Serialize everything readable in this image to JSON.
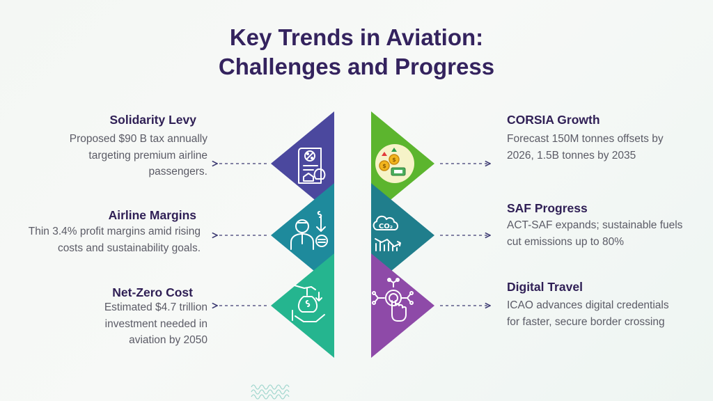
{
  "title": {
    "line1": "Key Trends in Aviation:",
    "line2": "Challenges and Progress"
  },
  "items": [
    {
      "side": "left",
      "heading": "Solidarity Levy",
      "description": "Proposed $90 B tax annually targeting premium airline passengers.",
      "icon": "tax-receipt-icon",
      "color": "#4b489e"
    },
    {
      "side": "left",
      "heading": "Airline Margins",
      "description": "Thin 3.4% profit margins amid rising costs and sustainability goals.",
      "icon": "stressed-businessman-icon",
      "color": "#1e8a9c"
    },
    {
      "side": "left",
      "heading": "Net-Zero Cost",
      "description": "Estimated $4.7 trillion investment needed in aviation by 2050",
      "icon": "investment-hand-icon",
      "color": "#25b58f"
    },
    {
      "side": "right",
      "heading": "CORSIA Growth",
      "description": "Forecast 150M tonnes offsets by 2026, 1.5B tonnes by 2035",
      "icon": "carbon-offset-coins-icon",
      "color": "#5cb52e"
    },
    {
      "side": "right",
      "heading": "SAF Progress",
      "description": "ACT-SAF expands; sustainable fuels cut emissions up to 80%",
      "icon": "co2-cloud-decline-icon",
      "icon_text": "CO₂",
      "color": "#207e8c"
    },
    {
      "side": "right",
      "heading": "Digital Travel",
      "description": "ICAO advances digital credentials for faster, secure border crossing",
      "icon": "digital-touch-icon",
      "color": "#8e4aa8"
    }
  ]
}
